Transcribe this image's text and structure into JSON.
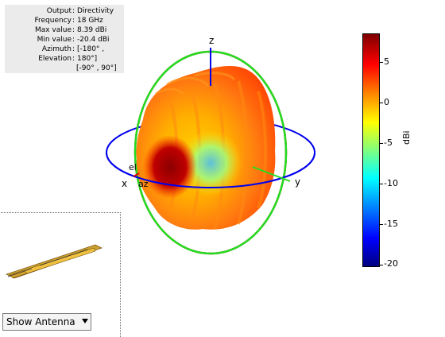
{
  "info": {
    "rows": [
      {
        "key": "Output",
        "value": "Directivity"
      },
      {
        "key": "Frequency",
        "value": "18 GHz"
      },
      {
        "key": "Max value",
        "value": "8.39 dBi"
      },
      {
        "key": "Min value",
        "value": "-20.4 dBi"
      },
      {
        "key": "Azimuth",
        "value": "[-180° ,"
      },
      {
        "key": "Elevation",
        "value": "180°]"
      }
    ],
    "extra": "[-90° , 90°]"
  },
  "axes": {
    "x": "x",
    "y": "y",
    "z": "z",
    "el": "el",
    "az": "az"
  },
  "colorbar": {
    "ticks": [
      "5",
      "0",
      "-5",
      "-10",
      "-15",
      "-20"
    ],
    "unit": "dBi",
    "colors": [
      "#7f0000",
      "#ff0000",
      "#ff7f00",
      "#ffff00",
      "#7fff7f",
      "#00ffff",
      "#007fff",
      "#0000ff",
      "#00007f"
    ]
  },
  "dropdown": {
    "label": "Show Antenna"
  }
}
